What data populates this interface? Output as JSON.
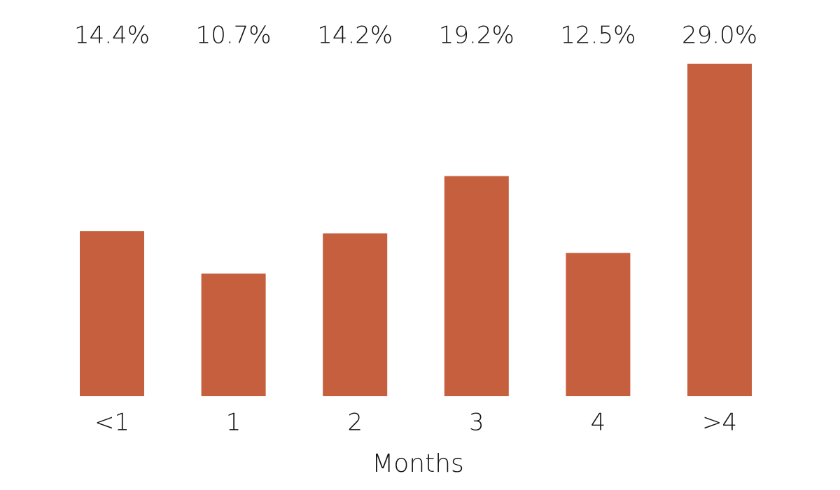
{
  "chart_data": {
    "type": "bar",
    "x_label": "Months",
    "categories": [
      "<1",
      "1",
      "2",
      "3",
      "4",
      ">4"
    ],
    "values": [
      14.4,
      10.7,
      14.2,
      19.2,
      12.5,
      29.0
    ],
    "value_labels": [
      "14.4%",
      "10.7%",
      "14.2%",
      "19.2%",
      "12.5%",
      "29.0%"
    ],
    "color": "#c65f3e"
  }
}
